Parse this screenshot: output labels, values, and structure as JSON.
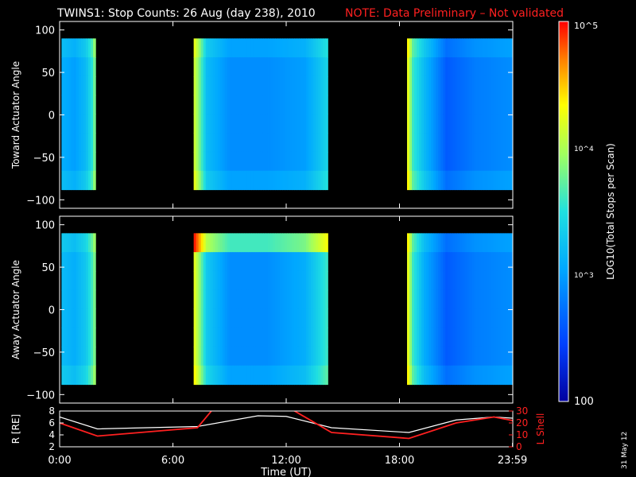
{
  "header": {
    "title": "TWINS1: Stop Counts: 26 Aug (day 238), 2010",
    "note": "NOTE: Data Preliminary – Not validated"
  },
  "colors": {
    "background": "#000000",
    "axes": "#ffffff",
    "note": "#ff2020",
    "lshell": "#ff2020",
    "radius": "#ffffff"
  },
  "footer": {
    "stamp": "31 May 12",
    "xlabel": "Time (UT)"
  },
  "colorbar": {
    "label": "LOG10(Total Stops per Scan)",
    "ticks": [
      "10^5",
      "10^4",
      "10^3",
      "100"
    ],
    "range": [
      100,
      100000
    ],
    "scale": "log"
  },
  "chart_data": [
    {
      "type": "heatmap",
      "ylabel": "Toward Actuator Angle",
      "ylim": [
        -110,
        110
      ],
      "yticks": [
        "100",
        "50",
        "0",
        "−50",
        "−100"
      ],
      "xlim_hours": [
        0,
        24
      ],
      "data_bands_hours": [
        [
          0.1,
          1.9
        ],
        [
          7.1,
          14.2
        ],
        [
          18.4,
          23.99
        ]
      ],
      "angle_extent": [
        -88,
        90
      ],
      "profiles": [
        {
          "name": "pass-1",
          "t": [
            0.1,
            0.8,
            1.4,
            1.7,
            1.9
          ],
          "log_counts": [
            3.1,
            3.0,
            3.2,
            3.5,
            3.9
          ]
        },
        {
          "name": "pass-2",
          "t": [
            7.1,
            7.4,
            7.8,
            9.0,
            11.0,
            13.0,
            14.2
          ],
          "log_counts": [
            4.2,
            3.8,
            3.2,
            2.9,
            2.9,
            3.0,
            3.4
          ]
        },
        {
          "name": "pass-3",
          "t": [
            18.4,
            18.7,
            19.3,
            20.5,
            22.0,
            23.99
          ],
          "log_counts": [
            4.4,
            3.6,
            3.2,
            2.6,
            2.8,
            2.9
          ]
        }
      ]
    },
    {
      "type": "heatmap",
      "ylabel": "Away Actuator Angle",
      "ylim": [
        -110,
        110
      ],
      "yticks": [
        "100",
        "50",
        "0",
        "−50",
        "−100"
      ],
      "xlim_hours": [
        0,
        24
      ],
      "data_bands_hours": [
        [
          0.1,
          1.9
        ],
        [
          7.1,
          14.2
        ],
        [
          18.4,
          23.99
        ]
      ],
      "angle_extent": [
        -88,
        90
      ],
      "profiles": [
        {
          "name": "pass-1",
          "t": [
            0.1,
            0.8,
            1.4,
            1.7,
            1.9
          ],
          "log_counts": [
            3.2,
            3.1,
            3.3,
            3.6,
            3.9
          ]
        },
        {
          "name": "pass-2",
          "t": [
            7.1,
            7.4,
            7.8,
            9.0,
            11.0,
            13.0,
            14.2
          ],
          "log_counts": [
            4.3,
            3.9,
            3.3,
            2.9,
            2.9,
            3.1,
            3.6
          ]
        },
        {
          "name": "pass-3",
          "t": [
            18.4,
            18.7,
            19.3,
            20.5,
            22.0,
            23.99
          ],
          "log_counts": [
            4.4,
            3.6,
            3.1,
            2.6,
            2.8,
            2.9
          ]
        }
      ]
    },
    {
      "type": "line",
      "ylabel_left": "R [RE]",
      "ylabel_right": "L Shell",
      "ylim_left": [
        2,
        8
      ],
      "ylim_right": [
        0,
        30
      ],
      "yticks_left": [
        "8",
        "6",
        "4",
        "2"
      ],
      "yticks_right": [
        "30",
        "20",
        "10",
        "0"
      ],
      "xticks": [
        "0:00",
        "6:00",
        "12:00",
        "18:00",
        "23:59"
      ],
      "xlim_hours": [
        0,
        24
      ],
      "series": [
        {
          "axis": "left",
          "x": [
            0,
            2.0,
            7.3,
            10.5,
            12.0,
            14.4,
            18.5,
            21.0,
            23.0,
            23.99
          ],
          "y": [
            7.0,
            5.0,
            5.4,
            7.2,
            7.1,
            5.2,
            4.4,
            6.5,
            7.0,
            6.8
          ]
        },
        {
          "axis": "right",
          "x": [
            0,
            2.0,
            7.3,
            8.3,
            11.9,
            14.4,
            18.5,
            21.0,
            23.0,
            23.99
          ],
          "y": [
            20.0,
            9.0,
            16.0,
            35.0,
            35.0,
            12.0,
            7.0,
            20.0,
            25.0,
            22.0
          ]
        }
      ]
    }
  ]
}
